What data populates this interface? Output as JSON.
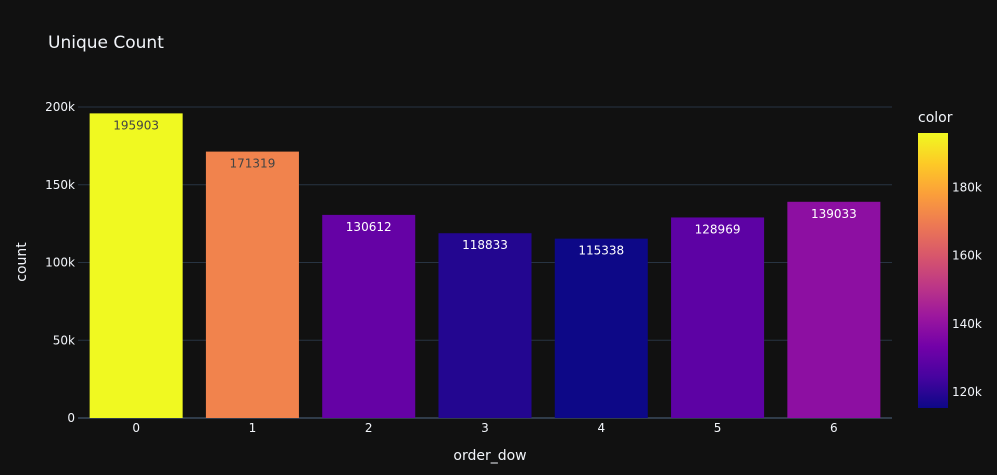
{
  "chart_data": {
    "type": "bar",
    "title": "Unique Count",
    "xlabel": "order_dow",
    "ylabel": "count",
    "categories": [
      "0",
      "1",
      "2",
      "3",
      "4",
      "5",
      "6"
    ],
    "values": [
      195903,
      171319,
      130612,
      118833,
      115338,
      128969,
      139033
    ],
    "data_labels": [
      "195903",
      "171319",
      "130612",
      "118833",
      "115338",
      "128969",
      "139033"
    ],
    "ylim": [
      0,
      200000
    ],
    "yticks": [
      0,
      50000,
      100000,
      150000,
      200000
    ],
    "ytick_labels": [
      "0",
      "50k",
      "100k",
      "150k",
      "200k"
    ],
    "grid": true,
    "colorbar": {
      "title": "color",
      "range": [
        115338,
        195903
      ],
      "ticks": [
        120000,
        140000,
        160000,
        180000
      ],
      "tick_labels": [
        "120k",
        "140k",
        "160k",
        "180k"
      ],
      "colorscale": [
        "#0d0887",
        "#46039f",
        "#7201a8",
        "#9c179e",
        "#bd3786",
        "#d8576b",
        "#ed7953",
        "#fb9f3a",
        "#fdca26",
        "#f0f921"
      ]
    },
    "colors": {
      "background": "#111111",
      "text": "#f2f5fa",
      "grid": "#283442"
    }
  }
}
